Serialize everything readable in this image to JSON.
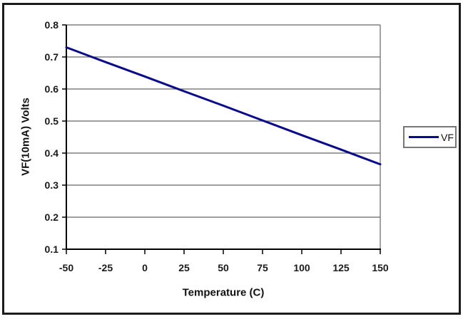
{
  "window": {
    "background": "#ffffff",
    "border_color": "#1c1c1c"
  },
  "chart_data": {
    "type": "line",
    "title": "",
    "xlabel": "Temperature (C)",
    "ylabel": "VF(10mA) Volts",
    "x": [
      -50,
      -25,
      0,
      25,
      50,
      75,
      100,
      125,
      150
    ],
    "series": [
      {
        "name": "VF",
        "color": "#0a0a8c",
        "values": [
          0.73,
          0.684,
          0.639,
          0.593,
          0.548,
          0.502,
          0.456,
          0.411,
          0.365
        ]
      }
    ],
    "xlim": [
      -50,
      150
    ],
    "ylim": [
      0.1,
      0.8
    ],
    "x_ticks": [
      "-50",
      "-25",
      "0",
      "25",
      "50",
      "75",
      "100",
      "125",
      "150"
    ],
    "y_ticks": [
      "0.1",
      "0.2",
      "0.3",
      "0.4",
      "0.5",
      "0.6",
      "0.7",
      "0.8"
    ],
    "grid": "horizontal",
    "grid_color": "#666666",
    "axis_color": "#000000",
    "legend_position": "right"
  },
  "legend": {
    "label": "VF",
    "line_color": "#0a0a8c"
  }
}
